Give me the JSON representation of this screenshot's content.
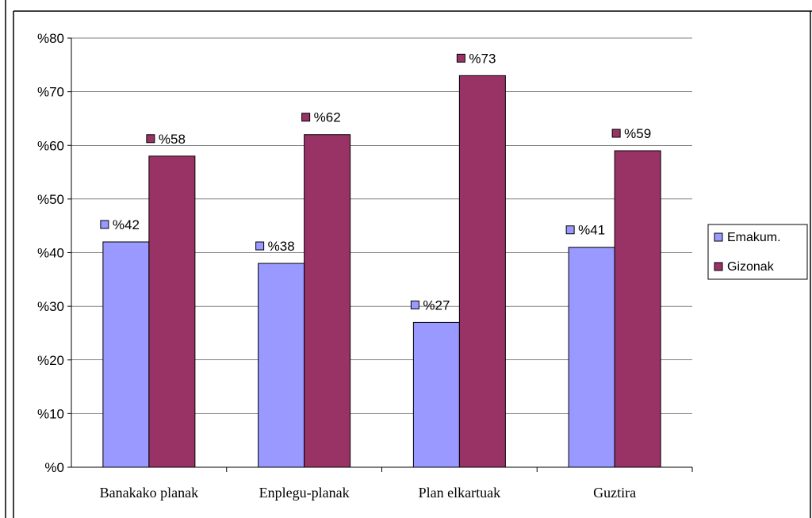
{
  "chart_data": {
    "type": "bar",
    "categories": [
      "Banakako planak",
      "Enplegu-planak",
      "Plan elkartuak",
      "Guztira"
    ],
    "series": [
      {
        "name": "Emakum.",
        "values": [
          42,
          38,
          27,
          41
        ],
        "color": "#9999FF"
      },
      {
        "name": "Gizonak",
        "values": [
          58,
          62,
          73,
          59
        ],
        "color": "#993366"
      }
    ],
    "data_labels": [
      [
        "%42",
        "%38",
        "%27",
        "%41"
      ],
      [
        "%58",
        "%62",
        "%73",
        "%59"
      ]
    ],
    "y_ticks": [
      "%0",
      "%10",
      "%20",
      "%30",
      "%40",
      "%50",
      "%60",
      "%70",
      "%80"
    ],
    "ylim": [
      0,
      80
    ],
    "grid": true,
    "legend_position": "right"
  }
}
